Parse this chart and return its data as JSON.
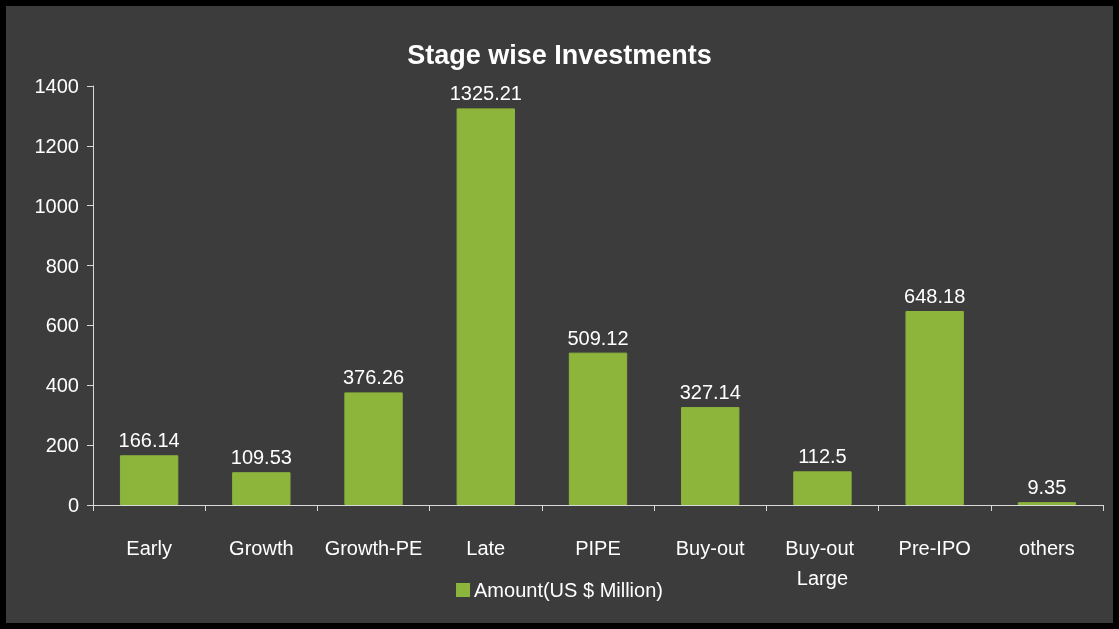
{
  "chart_data": {
    "type": "bar",
    "title": "Stage wise Investments",
    "categories": [
      "Early",
      "Growth",
      "Growth-PE",
      "Late",
      "PIPE",
      "Buy-out",
      "Buy-out Large",
      "Pre-IPO",
      "others"
    ],
    "series": [
      {
        "name": "Amount(US $ Million)",
        "color": "#8db53c",
        "values": [
          166.14,
          109.53,
          376.26,
          1325.21,
          509.12,
          327.14,
          112.5,
          648.18,
          9.35
        ]
      }
    ],
    "ylim": [
      0,
      1400
    ],
    "yticks": [
      0,
      200,
      400,
      600,
      800,
      1000,
      1200,
      1400
    ],
    "grid": false,
    "legend": "bottom",
    "data_labels": true
  }
}
